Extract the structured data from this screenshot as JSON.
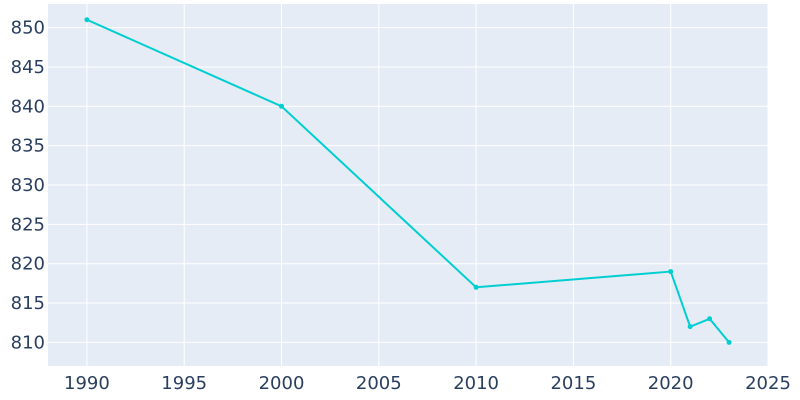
{
  "chart_data": {
    "type": "line",
    "title": "",
    "xlabel": "",
    "ylabel": "",
    "x": [
      1990,
      2000,
      2010,
      2020,
      2021,
      2022,
      2023
    ],
    "series": [
      {
        "values": [
          851,
          840,
          817,
          819,
          812,
          813,
          810
        ]
      }
    ],
    "xlim": [
      1988,
      2025
    ],
    "ylim": [
      807,
      853
    ],
    "x_ticks": [
      1990,
      1995,
      2000,
      2005,
      2010,
      2015,
      2020,
      2025
    ],
    "y_ticks": [
      810,
      815,
      820,
      825,
      830,
      835,
      840,
      845,
      850
    ],
    "grid": true,
    "legend": "none",
    "colors": {
      "line": "#00ced1",
      "plot_background": "#e5ecf6",
      "grid": "#ffffff",
      "tick_text": "#2a3f5f"
    }
  }
}
